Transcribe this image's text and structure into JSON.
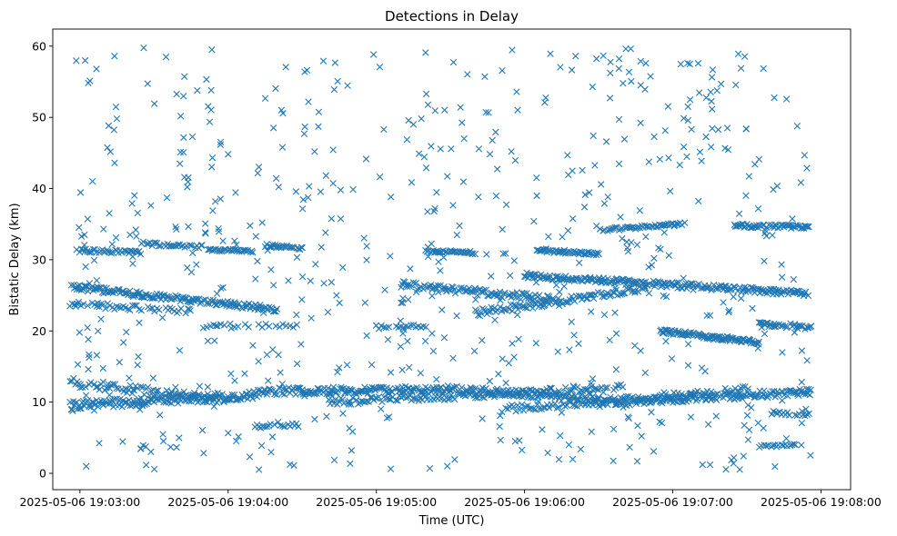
{
  "chart_data": {
    "type": "scatter",
    "title": "Detections in Delay",
    "xlabel": "Time (UTC)",
    "ylabel": "Bistatic Delay (km)",
    "marker": "x",
    "color": "#1f77b4",
    "grid": false,
    "xlim": [
      "2025-05-06 19:02:49",
      "2025-05-06 19:08:12"
    ],
    "ylim": [
      -2.3,
      62.4
    ],
    "xticks": [
      "2025-05-06 19:03:00",
      "2025-05-06 19:04:00",
      "2025-05-06 19:05:00",
      "2025-05-06 19:06:00",
      "2025-05-06 19:07:00",
      "2025-05-06 19:08:00"
    ],
    "yticks": [
      "0",
      "10",
      "20",
      "30",
      "40",
      "50",
      "60"
    ],
    "time_range": [
      "2025-05-06 19:02:56",
      "2025-05-06 19:07:56"
    ],
    "tracks": [
      {
        "t": [
          "2025-05-06 19:02:56",
          "2025-05-06 19:04:12"
        ],
        "y": [
          9.5,
          11.0
        ],
        "step_s": 0.45,
        "jitter": 0.6
      },
      {
        "t": [
          "2025-05-06 19:04:12",
          "2025-05-06 19:05:30"
        ],
        "y": [
          11.5,
          11.8
        ],
        "step_s": 0.45,
        "jitter": 0.5
      },
      {
        "t": [
          "2025-05-06 19:05:30",
          "2025-05-06 19:06:30"
        ],
        "y": [
          11.8,
          10.5
        ],
        "step_s": 0.5,
        "jitter": 0.5
      },
      {
        "t": [
          "2025-05-06 19:06:30",
          "2025-05-06 19:07:56"
        ],
        "y": [
          9.8,
          11.5
        ],
        "step_s": 0.45,
        "jitter": 0.5
      },
      {
        "t": [
          "2025-05-06 19:02:56",
          "2025-05-06 19:04:00"
        ],
        "y": [
          12.8,
          10.2
        ],
        "step_s": 0.7,
        "jitter": 0.6
      },
      {
        "t": [
          "2025-05-06 19:04:40",
          "2025-05-06 19:06:40"
        ],
        "y": [
          10.0,
          12.0
        ],
        "step_s": 0.7,
        "jitter": 0.5
      },
      {
        "t": [
          "2025-05-06 19:05:50",
          "2025-05-06 19:07:30"
        ],
        "y": [
          9.0,
          11.8
        ],
        "step_s": 0.8,
        "jitter": 0.5
      },
      {
        "t": [
          "2025-05-06 19:02:56",
          "2025-05-06 19:04:20"
        ],
        "y": [
          26.2,
          23.0
        ],
        "step_s": 0.45,
        "jitter": 0.4
      },
      {
        "t": [
          "2025-05-06 19:02:56",
          "2025-05-06 19:03:45"
        ],
        "y": [
          23.8,
          22.8
        ],
        "step_s": 0.9,
        "jitter": 0.4
      },
      {
        "t": [
          "2025-05-06 19:05:10",
          "2025-05-06 19:06:10"
        ],
        "y": [
          26.5,
          24.5
        ],
        "step_s": 0.5,
        "jitter": 0.5
      },
      {
        "t": [
          "2025-05-06 19:05:40",
          "2025-05-06 19:06:50"
        ],
        "y": [
          22.5,
          26.0
        ],
        "step_s": 0.6,
        "jitter": 0.5
      },
      {
        "t": [
          "2025-05-06 19:06:00",
          "2025-05-06 19:07:55"
        ],
        "y": [
          27.8,
          25.2
        ],
        "step_s": 0.45,
        "jitter": 0.4
      },
      {
        "t": [
          "2025-05-06 19:06:55",
          "2025-05-06 19:07:35"
        ],
        "y": [
          20.0,
          18.4
        ],
        "step_s": 0.35,
        "jitter": 0.3
      },
      {
        "t": [
          "2025-05-06 19:07:35",
          "2025-05-06 19:07:56"
        ],
        "y": [
          21.0,
          20.5
        ],
        "step_s": 0.5,
        "jitter": 0.3
      },
      {
        "t": [
          "2025-05-06 19:03:00",
          "2025-05-06 19:03:25"
        ],
        "y": [
          31.3,
          31.0
        ],
        "step_s": 0.6,
        "jitter": 0.25
      },
      {
        "t": [
          "2025-05-06 19:03:25",
          "2025-05-06 19:03:50"
        ],
        "y": [
          32.3,
          31.8
        ],
        "step_s": 0.7,
        "jitter": 0.25
      },
      {
        "t": [
          "2025-05-06 19:03:52",
          "2025-05-06 19:04:10"
        ],
        "y": [
          31.4,
          31.2
        ],
        "step_s": 0.5,
        "jitter": 0.2
      },
      {
        "t": [
          "2025-05-06 19:04:15",
          "2025-05-06 19:04:30"
        ],
        "y": [
          32.0,
          31.6
        ],
        "step_s": 0.5,
        "jitter": 0.2
      },
      {
        "t": [
          "2025-05-06 19:05:20",
          "2025-05-06 19:05:40"
        ],
        "y": [
          31.2,
          31.0
        ],
        "step_s": 0.5,
        "jitter": 0.2
      },
      {
        "t": [
          "2025-05-06 19:06:05",
          "2025-05-06 19:06:30"
        ],
        "y": [
          31.3,
          30.8
        ],
        "step_s": 0.5,
        "jitter": 0.2
      },
      {
        "t": [
          "2025-05-06 19:06:30",
          "2025-05-06 19:07:05"
        ],
        "y": [
          34.2,
          35.0
        ],
        "step_s": 0.6,
        "jitter": 0.25
      },
      {
        "t": [
          "2025-05-06 19:07:25",
          "2025-05-06 19:07:55"
        ],
        "y": [
          34.8,
          34.6
        ],
        "step_s": 0.5,
        "jitter": 0.25
      },
      {
        "t": [
          "2025-05-06 19:04:10",
          "2025-05-06 19:04:30"
        ],
        "y": [
          6.5,
          6.8
        ],
        "step_s": 0.8,
        "jitter": 0.3
      },
      {
        "t": [
          "2025-05-06 19:07:35",
          "2025-05-06 19:07:50"
        ],
        "y": [
          3.8,
          4.0
        ],
        "step_s": 0.7,
        "jitter": 0.2
      },
      {
        "t": [
          "2025-05-06 19:07:40",
          "2025-05-06 19:07:56"
        ],
        "y": [
          8.5,
          8.2
        ],
        "step_s": 0.8,
        "jitter": 0.3
      },
      {
        "t": [
          "2025-05-06 19:05:00",
          "2025-05-06 19:05:20"
        ],
        "y": [
          20.5,
          20.8
        ],
        "step_s": 1.0,
        "jitter": 0.3
      },
      {
        "t": [
          "2025-05-06 19:03:50",
          "2025-05-06 19:04:30"
        ],
        "y": [
          20.6,
          20.8
        ],
        "step_s": 1.4,
        "jitter": 0.3
      }
    ],
    "clutter": {
      "count": 650,
      "y_range": [
        0.5,
        59.8
      ],
      "seed": 7
    }
  }
}
